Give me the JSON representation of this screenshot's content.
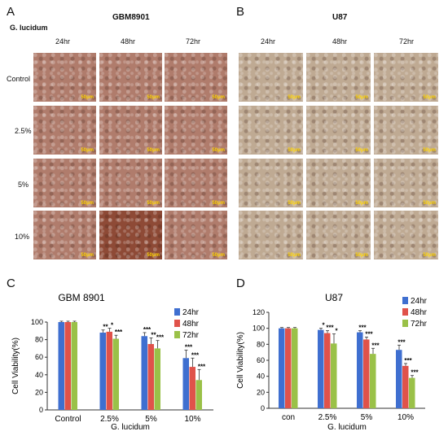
{
  "panels": {
    "A": {
      "letter": "A",
      "title": "GBM8901",
      "treatment_label": "G. lucidum",
      "columns": [
        "24hr",
        "48hr",
        "72hr"
      ],
      "rows": [
        "Control",
        "2.5%",
        "5%",
        "10%"
      ],
      "scale_bar": "50μm",
      "tint": "#b07c6c"
    },
    "B": {
      "letter": "B",
      "title": "U87",
      "columns": [
        "24hr",
        "48hr",
        "72hr"
      ],
      "scale_bar": "50μm",
      "tint": "#bfaa93"
    },
    "C": {
      "letter": "C"
    },
    "D": {
      "letter": "D"
    }
  },
  "chart_data": [
    {
      "id": "C",
      "type": "bar",
      "title": "GBM 8901",
      "ylabel": "Cell Viability(%)",
      "xlabel": "G. lucidum",
      "categories": [
        "Control",
        "2.5%",
        "5%",
        "10%"
      ],
      "ylim": [
        0,
        100
      ],
      "yticks": [
        0,
        20,
        40,
        60,
        80,
        100
      ],
      "legend_position": "top-right",
      "series": [
        {
          "name": "24hr",
          "color": "#3f6fd0",
          "values": [
            100,
            88,
            84,
            59
          ],
          "errors": [
            1,
            3,
            4,
            9
          ]
        },
        {
          "name": "48hr",
          "color": "#e0524a",
          "values": [
            100,
            89,
            75,
            49
          ],
          "errors": [
            1,
            4,
            7,
            10
          ]
        },
        {
          "name": "72hr",
          "color": "#9ac148",
          "values": [
            100,
            81,
            70,
            34
          ],
          "errors": [
            1,
            4,
            9,
            12
          ]
        }
      ],
      "significance": [
        [
          "",
          "",
          ""
        ],
        [
          "**",
          "*",
          "***"
        ],
        [
          "***",
          "**",
          "***"
        ],
        [
          "***",
          "***",
          "***"
        ]
      ]
    },
    {
      "id": "D",
      "type": "bar",
      "title": "U87",
      "ylabel": "Cell  Viability(%)",
      "xlabel": "G. lucidum",
      "categories": [
        "con",
        "2.5%",
        "5%",
        "10%"
      ],
      "ylim": [
        0,
        120
      ],
      "yticks": [
        0,
        20,
        40,
        60,
        80,
        100,
        120
      ],
      "legend_position": "top-right",
      "series": [
        {
          "name": "24hr",
          "color": "#3f6fd0",
          "values": [
            100,
            98,
            95,
            73
          ],
          "errors": [
            1,
            2,
            2,
            6
          ]
        },
        {
          "name": "48hr",
          "color": "#e0524a",
          "values": [
            100,
            94,
            86,
            53
          ],
          "errors": [
            1,
            3,
            3,
            3
          ]
        },
        {
          "name": "72hr",
          "color": "#9ac148",
          "values": [
            100,
            81,
            68,
            38
          ],
          "errors": [
            1,
            12,
            7,
            3
          ]
        }
      ],
      "significance": [
        [
          "",
          "",
          ""
        ],
        [
          "*",
          "***",
          "*"
        ],
        [
          "***",
          "***",
          "***"
        ],
        [
          "***",
          "***",
          "***"
        ]
      ]
    }
  ]
}
